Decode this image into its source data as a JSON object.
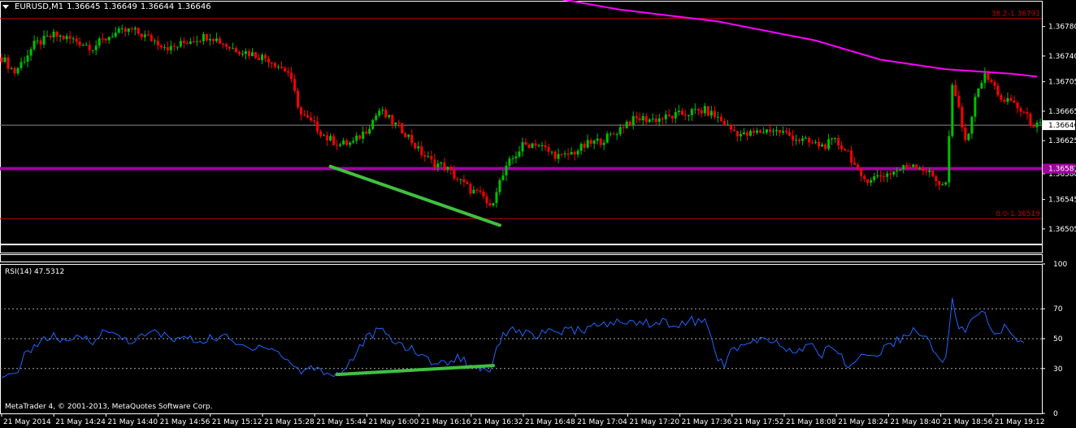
{
  "header": {
    "symbol": "EURUSD,M1",
    "ohlc": [
      "1.36645",
      "1.36649",
      "1.36644",
      "1.36646"
    ]
  },
  "colors": {
    "background": "#000000",
    "bull": "#00c000",
    "bear": "#ff0000",
    "ma": "#ff00ff",
    "pivot": "#a000a0",
    "fib": "#c00000",
    "trend": "#40c040",
    "rsi": "#1e64ff"
  },
  "chart_data": [
    {
      "type": "candlestick",
      "ylim": [
        1.36485,
        1.36815
      ],
      "y_ticks": [
        "1.36780",
        "1.36740",
        "1.36705",
        "1.36665",
        "1.36625",
        "1.36580",
        "1.36545",
        "1.36505"
      ],
      "price_close_points": [
        [
          0,
          1.36738
        ],
        [
          4,
          1.36718
        ],
        [
          10,
          1.36755
        ],
        [
          16,
          1.36768
        ],
        [
          22,
          1.36762
        ],
        [
          28,
          1.36752
        ],
        [
          34,
          1.3677
        ],
        [
          40,
          1.36775
        ],
        [
          46,
          1.36763
        ],
        [
          52,
          1.3675
        ],
        [
          58,
          1.36762
        ],
        [
          64,
          1.36768
        ],
        [
          70,
          1.36752
        ],
        [
          76,
          1.36744
        ],
        [
          82,
          1.36736
        ],
        [
          88,
          1.36718
        ],
        [
          92,
          1.3666
        ],
        [
          96,
          1.36646
        ],
        [
          100,
          1.36628
        ],
        [
          104,
          1.3662
        ],
        [
          108,
          1.36622
        ],
        [
          112,
          1.3664
        ],
        [
          116,
          1.36666
        ],
        [
          120,
          1.3665
        ],
        [
          124,
          1.36636
        ],
        [
          128,
          1.36612
        ],
        [
          132,
          1.36596
        ],
        [
          136,
          1.3659
        ],
        [
          140,
          1.36573
        ],
        [
          144,
          1.36558
        ],
        [
          148,
          1.36548
        ],
        [
          150,
          1.36532
        ],
        [
          152,
          1.3656
        ],
        [
          156,
          1.36595
        ],
        [
          160,
          1.36618
        ],
        [
          164,
          1.36622
        ],
        [
          168,
          1.3661
        ],
        [
          172,
          1.36602
        ],
        [
          176,
          1.3661
        ],
        [
          180,
          1.3662
        ],
        [
          184,
          1.36625
        ],
        [
          188,
          1.36634
        ],
        [
          192,
          1.3665
        ],
        [
          196,
          1.36655
        ],
        [
          200,
          1.36654
        ],
        [
          204,
          1.36656
        ],
        [
          208,
          1.3666
        ],
        [
          212,
          1.36664
        ],
        [
          216,
          1.36666
        ],
        [
          220,
          1.36656
        ],
        [
          224,
          1.3664
        ],
        [
          228,
          1.36632
        ],
        [
          232,
          1.36636
        ],
        [
          236,
          1.3664
        ],
        [
          240,
          1.36636
        ],
        [
          244,
          1.36628
        ],
        [
          248,
          1.36622
        ],
        [
          252,
          1.36618
        ],
        [
          256,
          1.36624
        ],
        [
          260,
          1.3661
        ],
        [
          264,
          1.36572
        ],
        [
          268,
          1.36575
        ],
        [
          272,
          1.3658
        ],
        [
          276,
          1.36586
        ],
        [
          280,
          1.36594
        ],
        [
          284,
          1.36584
        ],
        [
          288,
          1.36568
        ],
        [
          290,
          1.36566
        ],
        [
          292,
          1.36696
        ],
        [
          294,
          1.3667
        ],
        [
          296,
          1.3662
        ],
        [
          298,
          1.3666
        ],
        [
          300,
          1.367
        ],
        [
          302,
          1.36712
        ],
        [
          304,
          1.36704
        ],
        [
          306,
          1.3669
        ],
        [
          308,
          1.36675
        ],
        [
          310,
          1.3668
        ],
        [
          312,
          1.3667
        ],
        [
          314,
          1.36662
        ],
        [
          316,
          1.3665
        ],
        [
          318,
          1.36645
        ]
      ],
      "moving_average": [
        [
          158,
          1.36828
        ],
        [
          190,
          1.36803
        ],
        [
          220,
          1.36787
        ],
        [
          250,
          1.36761
        ],
        [
          270,
          1.36735
        ],
        [
          290,
          1.36722
        ],
        [
          310,
          1.36716
        ],
        [
          318,
          1.36712
        ]
      ],
      "current_price": "1.36646",
      "pivot_line": "1.36587",
      "fib_levels": [
        {
          "label": "38.2-1.36791",
          "price": 1.36791
        },
        {
          "label": "0.0-1.36519",
          "price": 1.36519
        }
      ],
      "trendline": [
        [
          101,
          1.3659
        ],
        [
          153,
          1.3651
        ]
      ],
      "x_ticks": [
        "21 May 2014",
        "21 May 14:24",
        "21 May 14:40",
        "21 May 14:56",
        "21 May 15:12",
        "21 May 15:28",
        "21 May 15:44",
        "21 May 16:00",
        "21 May 16:16",
        "21 May 16:32",
        "21 May 16:48",
        "21 May 17:04",
        "21 May 17:20",
        "21 May 17:36",
        "21 May 17:52",
        "21 May 18:08",
        "21 May 18:24",
        "21 May 18:40",
        "21 May 18:56",
        "21 May 19:12"
      ]
    },
    {
      "type": "line",
      "label": "RSI(14) 47.5312",
      "ylim": [
        0,
        100
      ],
      "y_ticks": [
        "100",
        "70",
        "50",
        "30",
        "0"
      ],
      "levels": [
        70,
        50,
        30
      ],
      "rsi_points": [
        [
          0,
          22
        ],
        [
          4,
          26
        ],
        [
          8,
          42
        ],
        [
          12,
          48
        ],
        [
          16,
          52
        ],
        [
          20,
          46
        ],
        [
          24,
          52
        ],
        [
          28,
          49
        ],
        [
          32,
          55
        ],
        [
          36,
          52
        ],
        [
          40,
          48
        ],
        [
          44,
          52
        ],
        [
          48,
          55
        ],
        [
          52,
          49
        ],
        [
          56,
          51
        ],
        [
          60,
          48
        ],
        [
          64,
          50
        ],
        [
          68,
          52
        ],
        [
          72,
          46
        ],
        [
          76,
          44
        ],
        [
          80,
          46
        ],
        [
          84,
          42
        ],
        [
          88,
          35
        ],
        [
          92,
          28
        ],
        [
          96,
          31
        ],
        [
          100,
          27
        ],
        [
          104,
          26
        ],
        [
          108,
          38
        ],
        [
          112,
          50
        ],
        [
          116,
          56
        ],
        [
          120,
          49
        ],
        [
          124,
          45
        ],
        [
          128,
          40
        ],
        [
          132,
          35
        ],
        [
          136,
          33
        ],
        [
          140,
          38
        ],
        [
          144,
          32
        ],
        [
          148,
          30
        ],
        [
          150,
          29
        ],
        [
          152,
          45
        ],
        [
          156,
          58
        ],
        [
          160,
          54
        ],
        [
          164,
          52
        ],
        [
          168,
          54
        ],
        [
          172,
          55
        ],
        [
          176,
          55
        ],
        [
          180,
          57
        ],
        [
          184,
          59
        ],
        [
          188,
          61
        ],
        [
          192,
          60
        ],
        [
          196,
          62
        ],
        [
          200,
          60
        ],
        [
          204,
          61
        ],
        [
          208,
          59
        ],
        [
          212,
          62
        ],
        [
          216,
          61
        ],
        [
          220,
          38
        ],
        [
          222,
          30
        ],
        [
          224,
          42
        ],
        [
          228,
          46
        ],
        [
          232,
          48
        ],
        [
          236,
          49
        ],
        [
          240,
          44
        ],
        [
          244,
          40
        ],
        [
          248,
          46
        ],
        [
          252,
          40
        ],
        [
          256,
          45
        ],
        [
          260,
          30
        ],
        [
          264,
          40
        ],
        [
          268,
          38
        ],
        [
          272,
          45
        ],
        [
          276,
          50
        ],
        [
          280,
          56
        ],
        [
          284,
          50
        ],
        [
          288,
          38
        ],
        [
          290,
          36
        ],
        [
          292,
          75
        ],
        [
          294,
          58
        ],
        [
          296,
          55
        ],
        [
          298,
          62
        ],
        [
          300,
          66
        ],
        [
          302,
          67
        ],
        [
          304,
          56
        ],
        [
          306,
          53
        ],
        [
          308,
          57
        ],
        [
          310,
          55
        ],
        [
          312,
          50
        ],
        [
          314,
          48
        ]
      ],
      "trendline": [
        [
          103,
          26
        ],
        [
          151,
          32
        ]
      ],
      "footer": "MetaTrader 4, © 2001-2013, MetaQuotes Software Corp."
    }
  ]
}
